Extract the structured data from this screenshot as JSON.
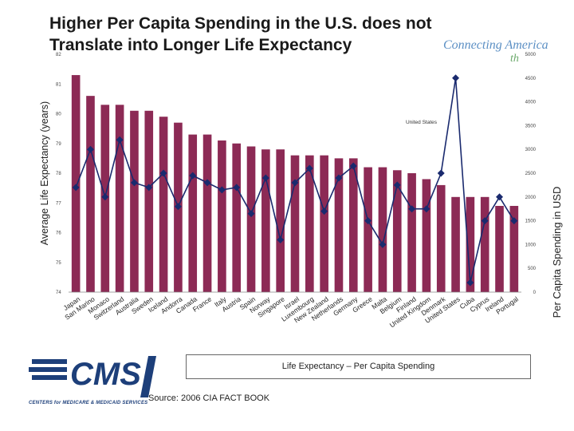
{
  "header": {
    "title_line1": "Higher Per Capita Spending in the U.S. does not",
    "title_line2": "Translate into Longer Life Expectancy",
    "brand": "Connecting America",
    "brand_sub": "th"
  },
  "legend": {
    "label": "Life Expectancy – Per Capita Spending"
  },
  "source": {
    "text": "Source: 2006 CIA  FACT BOOK"
  },
  "logo": {
    "text": "CMS",
    "subtitle": "CENTERS for MEDICARE & MEDICAID SERVICES"
  },
  "colors": {
    "bar": "#8c2a55",
    "line": "#1a2a6e",
    "marker": "#1a2a6e"
  },
  "chart_data": {
    "type": "bar+line",
    "title": "Higher Per Capita Spending in the U.S. does not Translate into Longer Life Expectancy",
    "ylabel_left": "Average Life Expectancy  (years)",
    "ylabel_right": "Per Capita Spending in USD",
    "left_axis": {
      "min": 74,
      "max": 82,
      "ticks": [
        74,
        75,
        76,
        77,
        78,
        79,
        80,
        81,
        82
      ]
    },
    "right_axis": {
      "min": 0,
      "max": 5000,
      "ticks": [
        0,
        500,
        1000,
        1500,
        2000,
        2500,
        3000,
        3500,
        4000,
        4500,
        5000
      ]
    },
    "annotation": "United States",
    "categories": [
      "Japan",
      "San Marino",
      "Monaco",
      "Switzerland",
      "Australia",
      "Sweden",
      "Iceland",
      "Andorra",
      "Canada",
      "France",
      "Italy",
      "Austria",
      "Spain",
      "Norway",
      "Singapore",
      "Israel",
      "Luxembourg",
      "New Zealand",
      "Netherlands",
      "Germany",
      "Greece",
      "Malta",
      "Belgium",
      "Finland",
      "United Kingdom",
      "Denmark",
      "United States",
      "Cuba",
      "Cyprus",
      "Ireland",
      "Portugal"
    ],
    "series": [
      {
        "name": "Life Expectancy",
        "kind": "bar",
        "axis": "left",
        "values": [
          81.3,
          80.6,
          80.3,
          80.3,
          80.1,
          80.1,
          79.9,
          79.7,
          79.3,
          79.3,
          79.1,
          79.0,
          78.9,
          78.8,
          78.8,
          78.6,
          78.6,
          78.6,
          78.5,
          78.5,
          78.2,
          78.2,
          78.1,
          78.0,
          77.8,
          77.6,
          77.2,
          77.2,
          77.2,
          76.9,
          76.9
        ]
      },
      {
        "name": "Per Capita Spending",
        "kind": "line",
        "axis": "right",
        "values": [
          2200,
          3000,
          2000,
          3200,
          2300,
          2200,
          2500,
          1800,
          2450,
          2300,
          2150,
          2200,
          1650,
          2400,
          1100,
          2300,
          2600,
          1700,
          2400,
          2650,
          1500,
          1000,
          2250,
          1750,
          1750,
          2500,
          4500,
          200,
          1500,
          2000,
          1500
        ]
      }
    ]
  }
}
